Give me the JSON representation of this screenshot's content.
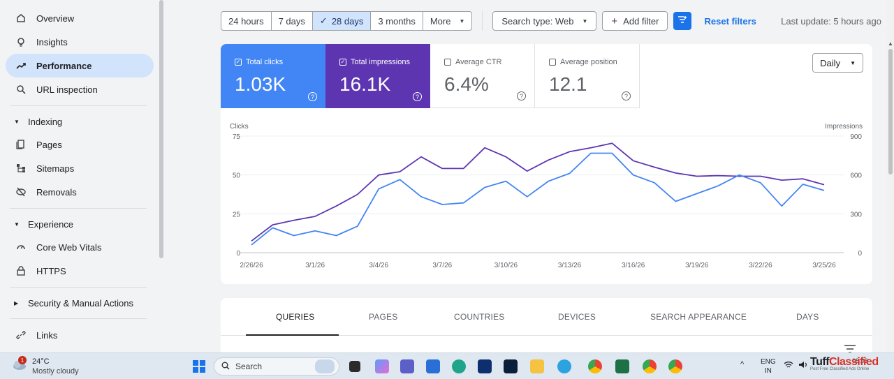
{
  "sidebar": {
    "items": [
      {
        "label": "Overview",
        "icon": "home-icon"
      },
      {
        "label": "Insights",
        "icon": "lightbulb-icon"
      },
      {
        "label": "Performance",
        "icon": "trending-up-icon",
        "active": true
      },
      {
        "label": "URL inspection",
        "icon": "search-icon"
      }
    ],
    "sections": [
      {
        "label": "Indexing",
        "items": [
          {
            "label": "Pages",
            "icon": "pages-icon"
          },
          {
            "label": "Sitemaps",
            "icon": "sitemap-icon"
          },
          {
            "label": "Removals",
            "icon": "eye-off-icon"
          }
        ]
      },
      {
        "label": "Experience",
        "items": [
          {
            "label": "Core Web Vitals",
            "icon": "gauge-icon"
          },
          {
            "label": "HTTPS",
            "icon": "lock-icon"
          }
        ]
      },
      {
        "label": "Security & Manual Actions",
        "collapsed": true
      }
    ],
    "links_label": "Links"
  },
  "toolbar": {
    "ranges": [
      "24 hours",
      "7 days",
      "28 days",
      "3 months"
    ],
    "selected_range": "28 days",
    "more_label": "More",
    "search_type": "Search type: Web",
    "add_filter": "Add filter",
    "reset_filters": "Reset filters",
    "last_update": "Last update: 5 hours ago"
  },
  "metrics": [
    {
      "label": "Total clicks",
      "value": "1.03K",
      "checked": true,
      "color": "#4285f4"
    },
    {
      "label": "Total impressions",
      "value": "16.1K",
      "checked": true,
      "color": "#5e35b1"
    },
    {
      "label": "Average CTR",
      "value": "6.4%",
      "checked": false
    },
    {
      "label": "Average position",
      "value": "12.1",
      "checked": false
    }
  ],
  "granularity": "Daily",
  "chart_data": {
    "type": "line",
    "ylabel_left": "Clicks",
    "ylabel_right": "Impressions",
    "yticks_left": [
      "75",
      "50",
      "25",
      "0"
    ],
    "yticks_right": [
      "900",
      "600",
      "300",
      "0"
    ],
    "ylim_left": [
      0,
      75
    ],
    "ylim_right": [
      0,
      900
    ],
    "xtick_labels": [
      "2/26/26",
      "3/1/26",
      "3/4/26",
      "3/7/26",
      "3/10/26",
      "3/13/26",
      "3/16/26",
      "3/19/26",
      "3/22/26",
      "3/25/26"
    ],
    "grid": true,
    "series": [
      {
        "name": "Clicks",
        "axis": "left",
        "color": "#4285f4",
        "values": [
          5,
          16,
          11,
          14,
          11,
          17,
          41,
          47,
          36,
          31,
          32,
          42,
          46,
          36,
          46,
          51,
          64,
          64,
          50,
          45,
          33,
          38,
          43,
          50,
          45,
          30,
          44,
          40
        ]
      },
      {
        "name": "Impressions",
        "axis": "right",
        "color": "#5e35b1",
        "values": [
          90,
          215,
          250,
          280,
          360,
          450,
          600,
          625,
          740,
          650,
          650,
          810,
          740,
          630,
          715,
          780,
          810,
          845,
          710,
          660,
          615,
          590,
          595,
          590,
          590,
          560,
          570,
          525
        ]
      }
    ]
  },
  "tabs": [
    "QUERIES",
    "PAGES",
    "COUNTRIES",
    "DEVICES",
    "SEARCH APPEARANCE",
    "DAYS"
  ],
  "taskbar": {
    "weather_temp": "24°C",
    "weather_desc": "Mostly cloudy",
    "weather_badge": "1",
    "search_placeholder": "Search",
    "lang_top": "ENG",
    "lang_bottom": "IN",
    "time": "08:03",
    "brand_name_1": "Tuff",
    "brand_name_2": "Classified",
    "brand_tagline": "Post Free Classified Ads Online"
  }
}
